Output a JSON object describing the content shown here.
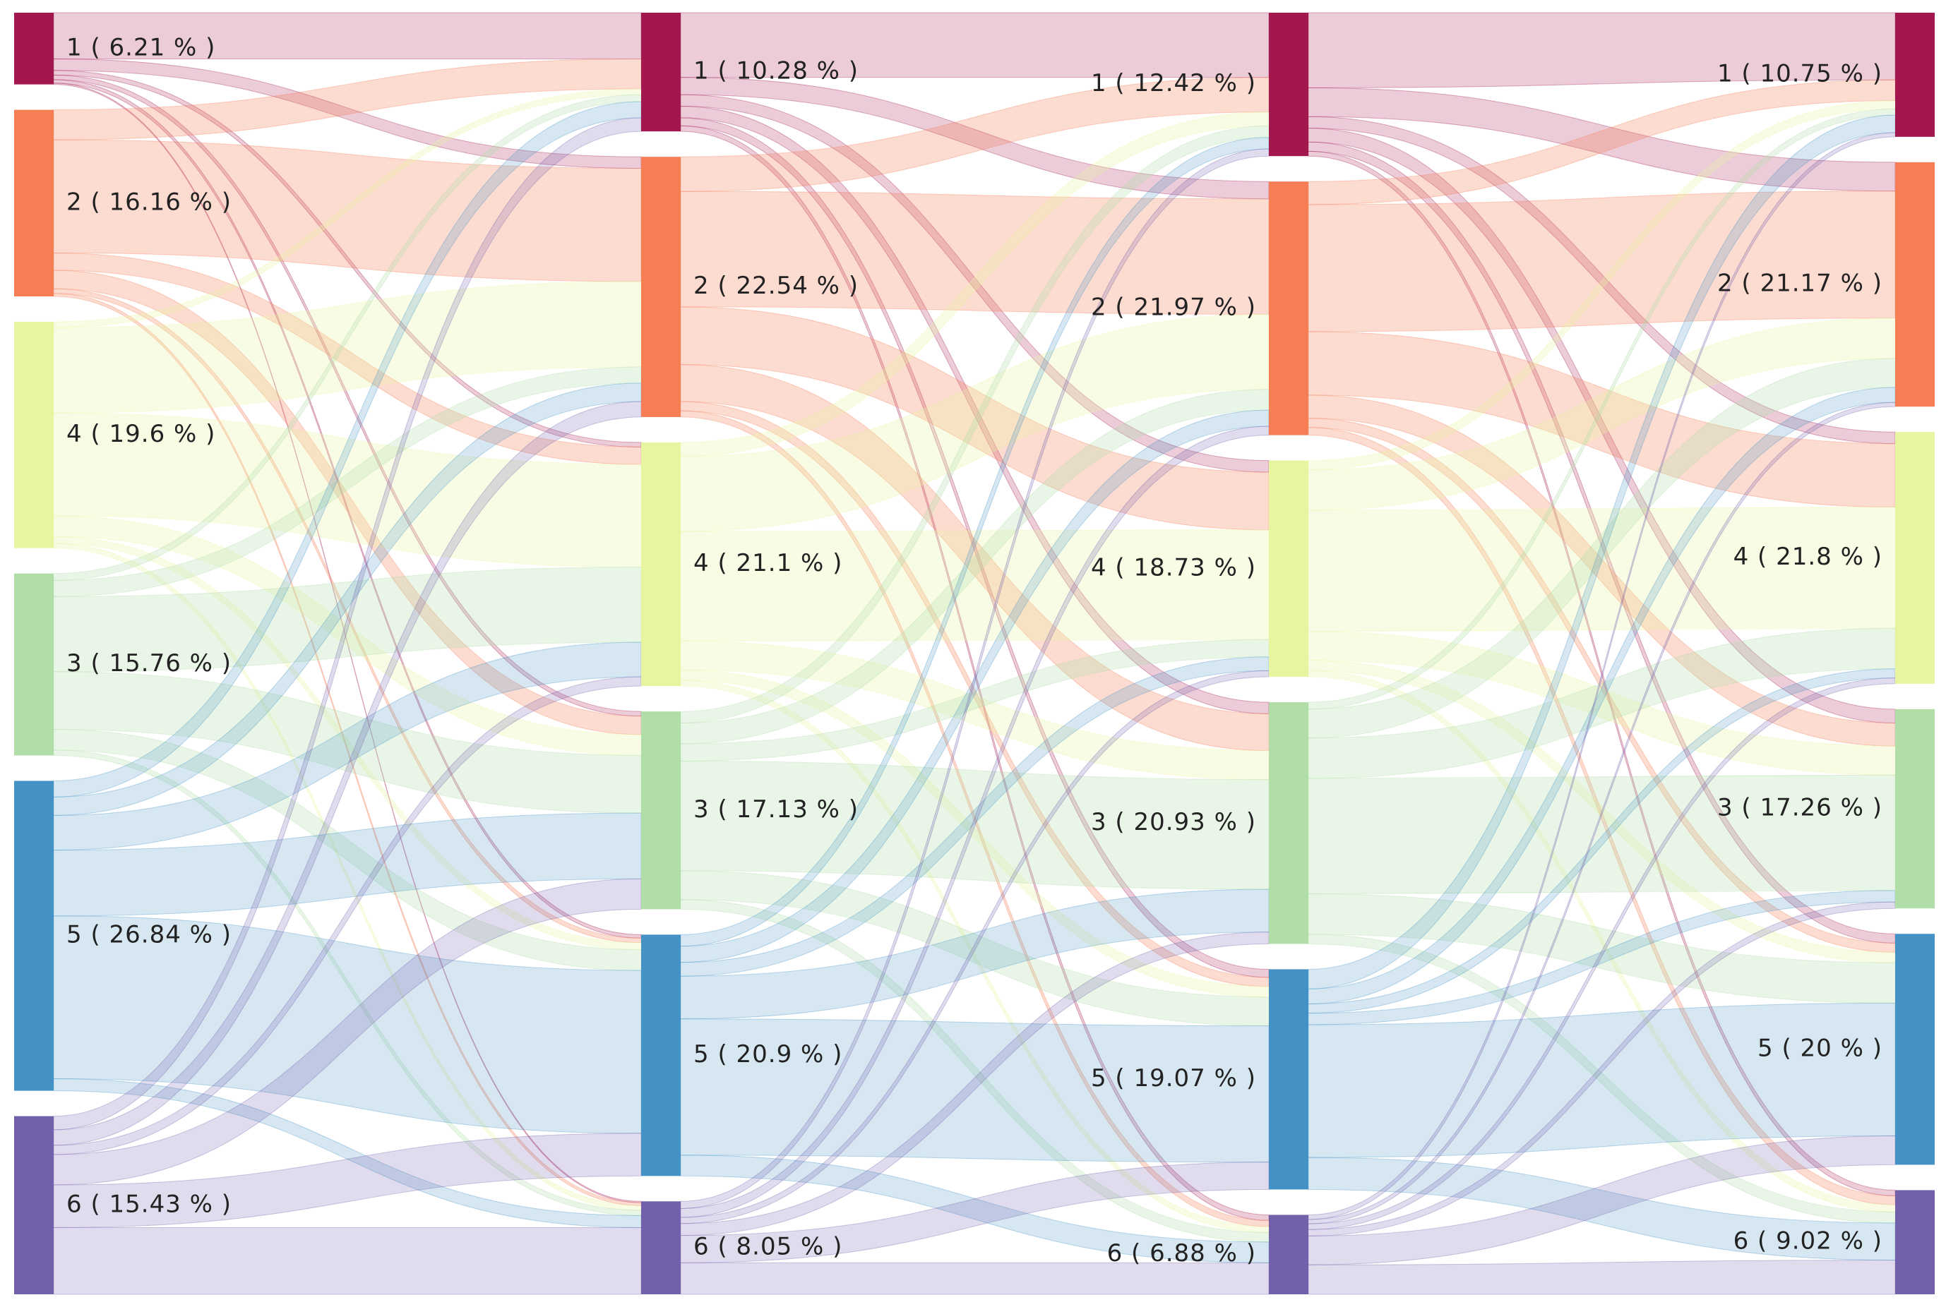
{
  "colors": {
    "1": "#a3174f",
    "2": "#f67e55",
    "4": "#e8f5a0",
    "3": "#b1dea8",
    "5": "#4391c5",
    "6": "#7260ab"
  },
  "chart_data": {
    "type": "sankey",
    "category_order": [
      "1",
      "2",
      "4",
      "3",
      "5",
      "6"
    ],
    "columns": [
      {
        "nodes": [
          {
            "category": "1",
            "label": "1 ( 6.21 % )",
            "value": 6.21
          },
          {
            "category": "2",
            "label": "2 ( 16.16 % )",
            "value": 16.16
          },
          {
            "category": "4",
            "label": "4 ( 19.6 % )",
            "value": 19.6
          },
          {
            "category": "3",
            "label": "3 ( 15.76 % )",
            "value": 15.76
          },
          {
            "category": "5",
            "label": "5 ( 26.84 % )",
            "value": 26.84
          },
          {
            "category": "6",
            "label": "6 ( 15.43 % )",
            "value": 15.43
          }
        ]
      },
      {
        "nodes": [
          {
            "category": "1",
            "label": "1 ( 10.28 % )",
            "value": 10.28
          },
          {
            "category": "2",
            "label": "2 ( 22.54 % )",
            "value": 22.54
          },
          {
            "category": "4",
            "label": "4 ( 21.1 % )",
            "value": 21.1
          },
          {
            "category": "3",
            "label": "3 ( 17.13 % )",
            "value": 17.13
          },
          {
            "category": "5",
            "label": "5 ( 20.9 % )",
            "value": 20.9
          },
          {
            "category": "6",
            "label": "6 ( 8.05 % )",
            "value": 8.05
          }
        ]
      },
      {
        "nodes": [
          {
            "category": "1",
            "label": "1 ( 12.42 % )",
            "value": 12.42
          },
          {
            "category": "2",
            "label": "2 ( 21.97 % )",
            "value": 21.97
          },
          {
            "category": "4",
            "label": "4 ( 18.73 % )",
            "value": 18.73
          },
          {
            "category": "3",
            "label": "3 ( 20.93 % )",
            "value": 20.93
          },
          {
            "category": "5",
            "label": "5 ( 19.07 % )",
            "value": 19.07
          },
          {
            "category": "6",
            "label": "6 ( 6.88 % )",
            "value": 6.88
          }
        ]
      },
      {
        "nodes": [
          {
            "category": "1",
            "label": "1 ( 10.75 % )",
            "value": 10.75
          },
          {
            "category": "2",
            "label": "2 ( 21.17 % )",
            "value": 21.17
          },
          {
            "category": "4",
            "label": "4 ( 21.8 % )",
            "value": 21.8
          },
          {
            "category": "3",
            "label": "3 ( 17.26 % )",
            "value": 17.26
          },
          {
            "category": "5",
            "label": "5 ( 20 % )",
            "value": 20
          },
          {
            "category": "6",
            "label": "6 ( 9.02 % )",
            "value": 9.02
          }
        ]
      }
    ],
    "flows": [
      [
        [
          "1",
          "1",
          4.0
        ],
        [
          "1",
          "2",
          1.0
        ],
        [
          "1",
          "4",
          0.4
        ],
        [
          "1",
          "3",
          0.4
        ],
        [
          "1",
          "5",
          0.3
        ],
        [
          "1",
          "6",
          0.11
        ],
        [
          "2",
          "1",
          2.6
        ],
        [
          "2",
          "2",
          9.8
        ],
        [
          "2",
          "4",
          1.5
        ],
        [
          "2",
          "3",
          1.6
        ],
        [
          "2",
          "5",
          0.4
        ],
        [
          "2",
          "6",
          0.26
        ],
        [
          "4",
          "1",
          0.5
        ],
        [
          "4",
          "2",
          7.4
        ],
        [
          "4",
          "4",
          8.9
        ],
        [
          "4",
          "3",
          1.8
        ],
        [
          "4",
          "5",
          0.6
        ],
        [
          "4",
          "6",
          0.4
        ],
        [
          "3",
          "1",
          0.6
        ],
        [
          "3",
          "2",
          1.4
        ],
        [
          "3",
          "4",
          6.5
        ],
        [
          "3",
          "3",
          5.0
        ],
        [
          "3",
          "5",
          1.8
        ],
        [
          "3",
          "6",
          0.46
        ],
        [
          "5",
          "1",
          1.4
        ],
        [
          "5",
          "2",
          1.6
        ],
        [
          "5",
          "4",
          3.0
        ],
        [
          "5",
          "3",
          5.7
        ],
        [
          "5",
          "5",
          14.1
        ],
        [
          "5",
          "6",
          1.04
        ],
        [
          "6",
          "1",
          1.18
        ],
        [
          "6",
          "2",
          1.34
        ],
        [
          "6",
          "4",
          0.8
        ],
        [
          "6",
          "3",
          2.63
        ],
        [
          "6",
          "5",
          3.7
        ],
        [
          "6",
          "6",
          5.78
        ]
      ],
      [
        [
          "1",
          "1",
          5.6
        ],
        [
          "1",
          "2",
          1.5
        ],
        [
          "1",
          "4",
          1.0
        ],
        [
          "1",
          "3",
          1.0
        ],
        [
          "1",
          "5",
          0.7
        ],
        [
          "1",
          "6",
          0.48
        ],
        [
          "2",
          "1",
          3.0
        ],
        [
          "2",
          "2",
          10.0
        ],
        [
          "2",
          "4",
          5.0
        ],
        [
          "2",
          "3",
          3.2
        ],
        [
          "2",
          "5",
          0.8
        ],
        [
          "2",
          "6",
          0.54
        ],
        [
          "4",
          "1",
          1.2
        ],
        [
          "4",
          "2",
          6.5
        ],
        [
          "4",
          "4",
          9.5
        ],
        [
          "4",
          "3",
          2.5
        ],
        [
          "4",
          "5",
          0.9
        ],
        [
          "4",
          "6",
          0.5
        ],
        [
          "3",
          "1",
          1.0
        ],
        [
          "3",
          "2",
          1.8
        ],
        [
          "3",
          "4",
          1.5
        ],
        [
          "3",
          "3",
          9.5
        ],
        [
          "3",
          "5",
          2.5
        ],
        [
          "3",
          "6",
          0.83
        ],
        [
          "5",
          "1",
          1.0
        ],
        [
          "5",
          "2",
          1.4
        ],
        [
          "5",
          "4",
          1.2
        ],
        [
          "5",
          "3",
          3.7
        ],
        [
          "5",
          "5",
          11.8
        ],
        [
          "5",
          "6",
          1.8
        ],
        [
          "6",
          "1",
          0.62
        ],
        [
          "6",
          "2",
          0.77
        ],
        [
          "6",
          "4",
          0.53
        ],
        [
          "6",
          "3",
          1.03
        ],
        [
          "6",
          "5",
          2.37
        ],
        [
          "6",
          "6",
          2.73
        ]
      ],
      [
        [
          "1",
          "1",
          6.5
        ],
        [
          "1",
          "2",
          2.5
        ],
        [
          "1",
          "4",
          1.0
        ],
        [
          "1",
          "3",
          1.2
        ],
        [
          "1",
          "5",
          0.8
        ],
        [
          "1",
          "6",
          0.42
        ],
        [
          "2",
          "1",
          2.0
        ],
        [
          "2",
          "2",
          11.0
        ],
        [
          "2",
          "4",
          5.5
        ],
        [
          "2",
          "3",
          2.0
        ],
        [
          "2",
          "5",
          0.8
        ],
        [
          "2",
          "6",
          0.67
        ],
        [
          "4",
          "1",
          0.8
        ],
        [
          "4",
          "2",
          3.5
        ],
        [
          "4",
          "4",
          10.5
        ],
        [
          "4",
          "3",
          2.5
        ],
        [
          "4",
          "5",
          0.9
        ],
        [
          "4",
          "6",
          0.53
        ],
        [
          "3",
          "1",
          0.6
        ],
        [
          "3",
          "2",
          2.5
        ],
        [
          "3",
          "4",
          3.5
        ],
        [
          "3",
          "3",
          10.0
        ],
        [
          "3",
          "5",
          3.5
        ],
        [
          "3",
          "6",
          0.83
        ],
        [
          "5",
          "1",
          1.7
        ],
        [
          "5",
          "2",
          1.3
        ],
        [
          "5",
          "4",
          0.8
        ],
        [
          "5",
          "3",
          1.0
        ],
        [
          "5",
          "5",
          11.5
        ],
        [
          "5",
          "6",
          2.77
        ],
        [
          "6",
          "1",
          0.4
        ],
        [
          "6",
          "2",
          0.37
        ],
        [
          "6",
          "4",
          0.5
        ],
        [
          "6",
          "3",
          0.56
        ],
        [
          "6",
          "5",
          2.5
        ],
        [
          "6",
          "6",
          2.55
        ]
      ]
    ]
  }
}
